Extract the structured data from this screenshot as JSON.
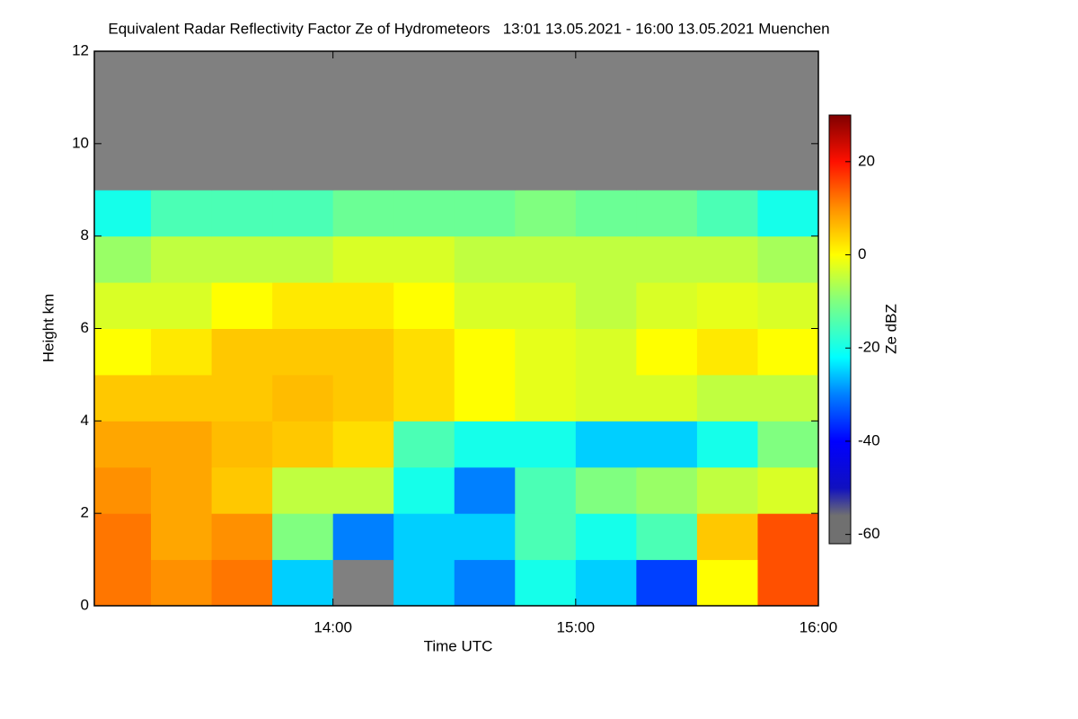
{
  "chart_data": {
    "type": "heatmap",
    "title": "Equivalent Radar Reflectivity Factor Ze of Hydrometeors   13:01 13.05.2021 - 16:00 13.05.2021 Muenchen",
    "x_label": "Time UTC",
    "y_label": "Height km",
    "colorbar_label": "Ze dBZ",
    "x": [
      13.125,
      13.375,
      13.625,
      13.875,
      14.125,
      14.375,
      14.625,
      14.875,
      15.125,
      15.375,
      15.625,
      15.875
    ],
    "y": [
      0.5,
      1.5,
      2.5,
      3.5,
      4.5,
      5.5,
      6.5,
      7.5,
      8.5,
      9.5,
      10.5,
      11.5
    ],
    "values": [
      [
        12,
        10,
        12,
        -25,
        null,
        -25,
        -30,
        -20,
        -25,
        -35,
        0,
        15
      ],
      [
        12,
        8,
        10,
        -10,
        -30,
        -25,
        -25,
        -15,
        -20,
        -15,
        5,
        15
      ],
      [
        10,
        8,
        5,
        -5,
        -5,
        -20,
        -30,
        -15,
        -10,
        -8,
        -5,
        -3
      ],
      [
        8,
        8,
        6,
        5,
        3,
        -15,
        -20,
        -20,
        -25,
        -25,
        -20,
        -10
      ],
      [
        5,
        5,
        5,
        6,
        5,
        3,
        0,
        -2,
        -3,
        -3,
        -5,
        -5
      ],
      [
        0,
        2,
        5,
        5,
        5,
        3,
        0,
        -2,
        -3,
        0,
        2,
        0
      ],
      [
        -3,
        -3,
        0,
        2,
        2,
        0,
        -3,
        -3,
        -5,
        -3,
        -2,
        -3
      ],
      [
        -8,
        -5,
        -5,
        -5,
        -3,
        -3,
        -5,
        -5,
        -5,
        -5,
        -5,
        -7
      ],
      [
        -20,
        -15,
        -15,
        -15,
        -12,
        -12,
        -12,
        -10,
        -12,
        -12,
        -15,
        -20
      ],
      [
        null,
        null,
        null,
        null,
        null,
        null,
        null,
        null,
        null,
        null,
        null,
        null
      ],
      [
        null,
        null,
        null,
        null,
        null,
        null,
        null,
        null,
        null,
        null,
        null,
        null
      ],
      [
        null,
        null,
        null,
        null,
        null,
        null,
        null,
        null,
        null,
        null,
        null,
        null
      ]
    ],
    "xlim": [
      13.0167,
      16.0
    ],
    "xticks": [
      {
        "value": 14,
        "label": "14:00"
      },
      {
        "value": 15,
        "label": "15:00"
      },
      {
        "value": 16,
        "label": "16:00"
      }
    ],
    "ylim": [
      0,
      12
    ],
    "yticks": [
      0,
      2,
      4,
      6,
      8,
      10,
      12
    ],
    "zlim": [
      -62,
      30
    ],
    "zticks": [
      -60,
      -40,
      -20,
      0,
      20
    ],
    "null_color": "#808080",
    "colorscale": [
      [
        -62,
        "#707070"
      ],
      [
        -56,
        "#707070"
      ],
      [
        -50,
        "#1010c0"
      ],
      [
        -40,
        "#0000ff"
      ],
      [
        -30,
        "#0080ff"
      ],
      [
        -22,
        "#00ffff"
      ],
      [
        -10,
        "#80ff80"
      ],
      [
        0,
        "#ffff00"
      ],
      [
        10,
        "#ff9000"
      ],
      [
        20,
        "#ff1000"
      ],
      [
        30,
        "#800000"
      ]
    ]
  }
}
